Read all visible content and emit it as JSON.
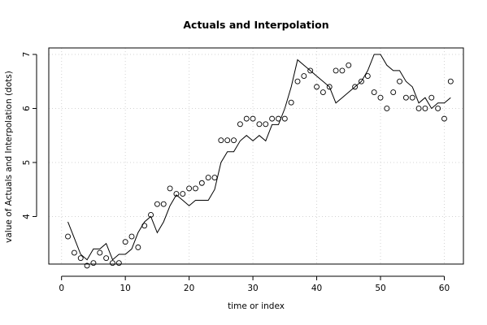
{
  "chart_data": {
    "type": "line",
    "title": "Actuals and Interpolation",
    "xlabel": "time or index",
    "ylabel": "value of Actuals and Interpolation (dots)",
    "xlim": [
      -2,
      63
    ],
    "ylim": [
      3.12,
      7.12
    ],
    "x_ticks": [
      0,
      10,
      20,
      30,
      40,
      50,
      60
    ],
    "x_tick_labels": [
      "0",
      "10",
      "20",
      "30",
      "40",
      "50",
      "60"
    ],
    "y_ticks": [
      4,
      5,
      6,
      7
    ],
    "y_tick_labels": [
      "4",
      "5",
      "6",
      "7"
    ],
    "grid": true,
    "series": [
      {
        "style": "points",
        "x": [
          1,
          2,
          3,
          4,
          5,
          6,
          7,
          8,
          9,
          10,
          11,
          12,
          13,
          14,
          15,
          16,
          17,
          18,
          19,
          20,
          21,
          22,
          23,
          24,
          25,
          26,
          27,
          28,
          29,
          30,
          31,
          32,
          33,
          34,
          35,
          36,
          37,
          38,
          39,
          40,
          41,
          42,
          43,
          44,
          45,
          46,
          47,
          48,
          49,
          50,
          51,
          52,
          53,
          54,
          55,
          56,
          57,
          58,
          59,
          60,
          61
        ],
        "values": [
          3.63,
          3.33,
          3.23,
          3.09,
          3.14,
          3.33,
          3.23,
          3.14,
          3.14,
          3.53,
          3.63,
          3.43,
          3.83,
          4.03,
          4.23,
          4.23,
          4.52,
          4.42,
          4.42,
          4.52,
          4.52,
          4.62,
          4.72,
          4.72,
          5.41,
          5.41,
          5.41,
          5.71,
          5.81,
          5.81,
          5.71,
          5.71,
          5.81,
          5.81,
          5.81,
          6.11,
          6.5,
          6.6,
          6.7,
          6.4,
          6.3,
          6.4,
          6.7,
          6.7,
          6.8,
          6.4,
          6.5,
          6.6,
          6.3,
          6.2,
          6.0,
          6.3,
          6.5,
          6.2,
          6.2,
          6.0,
          6.0,
          6.2,
          6.0,
          5.81,
          6.5
        ]
      },
      {
        "style": "line",
        "x": [
          1,
          2,
          3,
          4,
          5,
          6,
          7,
          8,
          9,
          10,
          11,
          12,
          13,
          14,
          15,
          16,
          17,
          18,
          19,
          20,
          21,
          22,
          23,
          24,
          25,
          26,
          27,
          28,
          29,
          30,
          31,
          32,
          33,
          34,
          35,
          36,
          37,
          38,
          39,
          40,
          41,
          42,
          43,
          44,
          45,
          46,
          47,
          48,
          49,
          50,
          51,
          52,
          53,
          54,
          55,
          56,
          57,
          58,
          59,
          60,
          61
        ],
        "values": [
          3.9,
          3.6,
          3.3,
          3.2,
          3.4,
          3.4,
          3.5,
          3.2,
          3.3,
          3.3,
          3.4,
          3.7,
          3.9,
          4.0,
          3.7,
          3.9,
          4.2,
          4.4,
          4.3,
          4.2,
          4.3,
          4.3,
          4.3,
          4.5,
          5.0,
          5.2,
          5.2,
          5.4,
          5.5,
          5.4,
          5.5,
          5.4,
          5.7,
          5.7,
          6.0,
          6.4,
          6.9,
          6.8,
          6.7,
          6.6,
          6.5,
          6.4,
          6.1,
          6.2,
          6.3,
          6.4,
          6.5,
          6.7,
          7.0,
          7.0,
          6.8,
          6.7,
          6.7,
          6.5,
          6.4,
          6.1,
          6.2,
          6.0,
          6.1,
          6.1,
          6.2
        ]
      }
    ]
  }
}
